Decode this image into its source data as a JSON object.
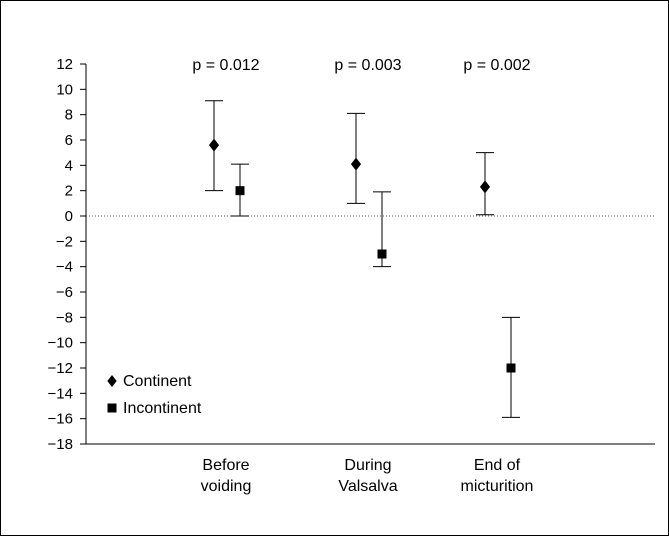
{
  "chart_data": {
    "type": "scatter",
    "title": "",
    "xlabel": "",
    "ylabel": "",
    "ylim": [
      -18,
      12
    ],
    "yticks": [
      12,
      10,
      8,
      6,
      4,
      2,
      0,
      -2,
      -4,
      -6,
      -8,
      -10,
      -12,
      -14,
      -16,
      -18
    ],
    "ytick_labels": [
      "12",
      "10",
      "8",
      "6",
      "4",
      "2",
      "0",
      "−2",
      "−4",
      "−6",
      "−8",
      "−10",
      "−12",
      "−14",
      "−16",
      "−18"
    ],
    "categories": [
      [
        "Before",
        "voiding"
      ],
      [
        "During",
        "Valsalva"
      ],
      [
        "End of",
        "micturition"
      ]
    ],
    "p_values": [
      "p = 0.012",
      "p = 0.003",
      "p = 0.002"
    ],
    "reference_line": 0,
    "grid": false,
    "legend_position": "bottom-left",
    "series": [
      {
        "name": "Continent",
        "marker": "diamond",
        "points": [
          {
            "mean": 5.6,
            "lower": 2.0,
            "upper": 9.1
          },
          {
            "mean": 4.1,
            "lower": 1.0,
            "upper": 8.1
          },
          {
            "mean": 2.3,
            "lower": 0.1,
            "upper": 5.0
          }
        ]
      },
      {
        "name": "Incontinent",
        "marker": "square",
        "points": [
          {
            "mean": 2.0,
            "lower": 0.0,
            "upper": 4.1
          },
          {
            "mean": -3.0,
            "lower": -4.0,
            "upper": 1.9
          },
          {
            "mean": -12.0,
            "lower": -15.9,
            "upper": -8.0
          }
        ]
      }
    ],
    "colors": {
      "marks": "#000000",
      "zero_line": "#555555"
    }
  }
}
